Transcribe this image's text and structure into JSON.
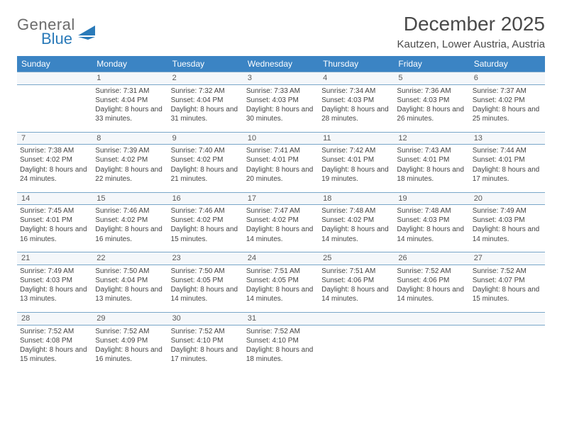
{
  "brand": {
    "part1": "General",
    "part2": "Blue"
  },
  "title": "December 2025",
  "location": "Kautzen, Lower Austria, Austria",
  "colors": {
    "header_bg": "#3b84c4",
    "rule": "#7aa7c9",
    "accent": "#2a7ab9",
    "text": "#444444"
  },
  "day_headers": [
    "Sunday",
    "Monday",
    "Tuesday",
    "Wednesday",
    "Thursday",
    "Friday",
    "Saturday"
  ],
  "weeks": [
    {
      "nums": [
        "",
        "1",
        "2",
        "3",
        "4",
        "5",
        "6"
      ],
      "cells": [
        null,
        {
          "sunrise": "7:31 AM",
          "sunset": "4:04 PM",
          "daylight": "8 hours and 33 minutes."
        },
        {
          "sunrise": "7:32 AM",
          "sunset": "4:04 PM",
          "daylight": "8 hours and 31 minutes."
        },
        {
          "sunrise": "7:33 AM",
          "sunset": "4:03 PM",
          "daylight": "8 hours and 30 minutes."
        },
        {
          "sunrise": "7:34 AM",
          "sunset": "4:03 PM",
          "daylight": "8 hours and 28 minutes."
        },
        {
          "sunrise": "7:36 AM",
          "sunset": "4:03 PM",
          "daylight": "8 hours and 26 minutes."
        },
        {
          "sunrise": "7:37 AM",
          "sunset": "4:02 PM",
          "daylight": "8 hours and 25 minutes."
        }
      ]
    },
    {
      "nums": [
        "7",
        "8",
        "9",
        "10",
        "11",
        "12",
        "13"
      ],
      "cells": [
        {
          "sunrise": "7:38 AM",
          "sunset": "4:02 PM",
          "daylight": "8 hours and 24 minutes."
        },
        {
          "sunrise": "7:39 AM",
          "sunset": "4:02 PM",
          "daylight": "8 hours and 22 minutes."
        },
        {
          "sunrise": "7:40 AM",
          "sunset": "4:02 PM",
          "daylight": "8 hours and 21 minutes."
        },
        {
          "sunrise": "7:41 AM",
          "sunset": "4:01 PM",
          "daylight": "8 hours and 20 minutes."
        },
        {
          "sunrise": "7:42 AM",
          "sunset": "4:01 PM",
          "daylight": "8 hours and 19 minutes."
        },
        {
          "sunrise": "7:43 AM",
          "sunset": "4:01 PM",
          "daylight": "8 hours and 18 minutes."
        },
        {
          "sunrise": "7:44 AM",
          "sunset": "4:01 PM",
          "daylight": "8 hours and 17 minutes."
        }
      ]
    },
    {
      "nums": [
        "14",
        "15",
        "16",
        "17",
        "18",
        "19",
        "20"
      ],
      "cells": [
        {
          "sunrise": "7:45 AM",
          "sunset": "4:01 PM",
          "daylight": "8 hours and 16 minutes."
        },
        {
          "sunrise": "7:46 AM",
          "sunset": "4:02 PM",
          "daylight": "8 hours and 16 minutes."
        },
        {
          "sunrise": "7:46 AM",
          "sunset": "4:02 PM",
          "daylight": "8 hours and 15 minutes."
        },
        {
          "sunrise": "7:47 AM",
          "sunset": "4:02 PM",
          "daylight": "8 hours and 14 minutes."
        },
        {
          "sunrise": "7:48 AM",
          "sunset": "4:02 PM",
          "daylight": "8 hours and 14 minutes."
        },
        {
          "sunrise": "7:48 AM",
          "sunset": "4:03 PM",
          "daylight": "8 hours and 14 minutes."
        },
        {
          "sunrise": "7:49 AM",
          "sunset": "4:03 PM",
          "daylight": "8 hours and 14 minutes."
        }
      ]
    },
    {
      "nums": [
        "21",
        "22",
        "23",
        "24",
        "25",
        "26",
        "27"
      ],
      "cells": [
        {
          "sunrise": "7:49 AM",
          "sunset": "4:03 PM",
          "daylight": "8 hours and 13 minutes."
        },
        {
          "sunrise": "7:50 AM",
          "sunset": "4:04 PM",
          "daylight": "8 hours and 13 minutes."
        },
        {
          "sunrise": "7:50 AM",
          "sunset": "4:05 PM",
          "daylight": "8 hours and 14 minutes."
        },
        {
          "sunrise": "7:51 AM",
          "sunset": "4:05 PM",
          "daylight": "8 hours and 14 minutes."
        },
        {
          "sunrise": "7:51 AM",
          "sunset": "4:06 PM",
          "daylight": "8 hours and 14 minutes."
        },
        {
          "sunrise": "7:52 AM",
          "sunset": "4:06 PM",
          "daylight": "8 hours and 14 minutes."
        },
        {
          "sunrise": "7:52 AM",
          "sunset": "4:07 PM",
          "daylight": "8 hours and 15 minutes."
        }
      ]
    },
    {
      "nums": [
        "28",
        "29",
        "30",
        "31",
        "",
        "",
        ""
      ],
      "cells": [
        {
          "sunrise": "7:52 AM",
          "sunset": "4:08 PM",
          "daylight": "8 hours and 15 minutes."
        },
        {
          "sunrise": "7:52 AM",
          "sunset": "4:09 PM",
          "daylight": "8 hours and 16 minutes."
        },
        {
          "sunrise": "7:52 AM",
          "sunset": "4:10 PM",
          "daylight": "8 hours and 17 minutes."
        },
        {
          "sunrise": "7:52 AM",
          "sunset": "4:10 PM",
          "daylight": "8 hours and 18 minutes."
        },
        null,
        null,
        null
      ]
    }
  ],
  "labels": {
    "sunrise": "Sunrise:",
    "sunset": "Sunset:",
    "daylight": "Daylight:"
  }
}
